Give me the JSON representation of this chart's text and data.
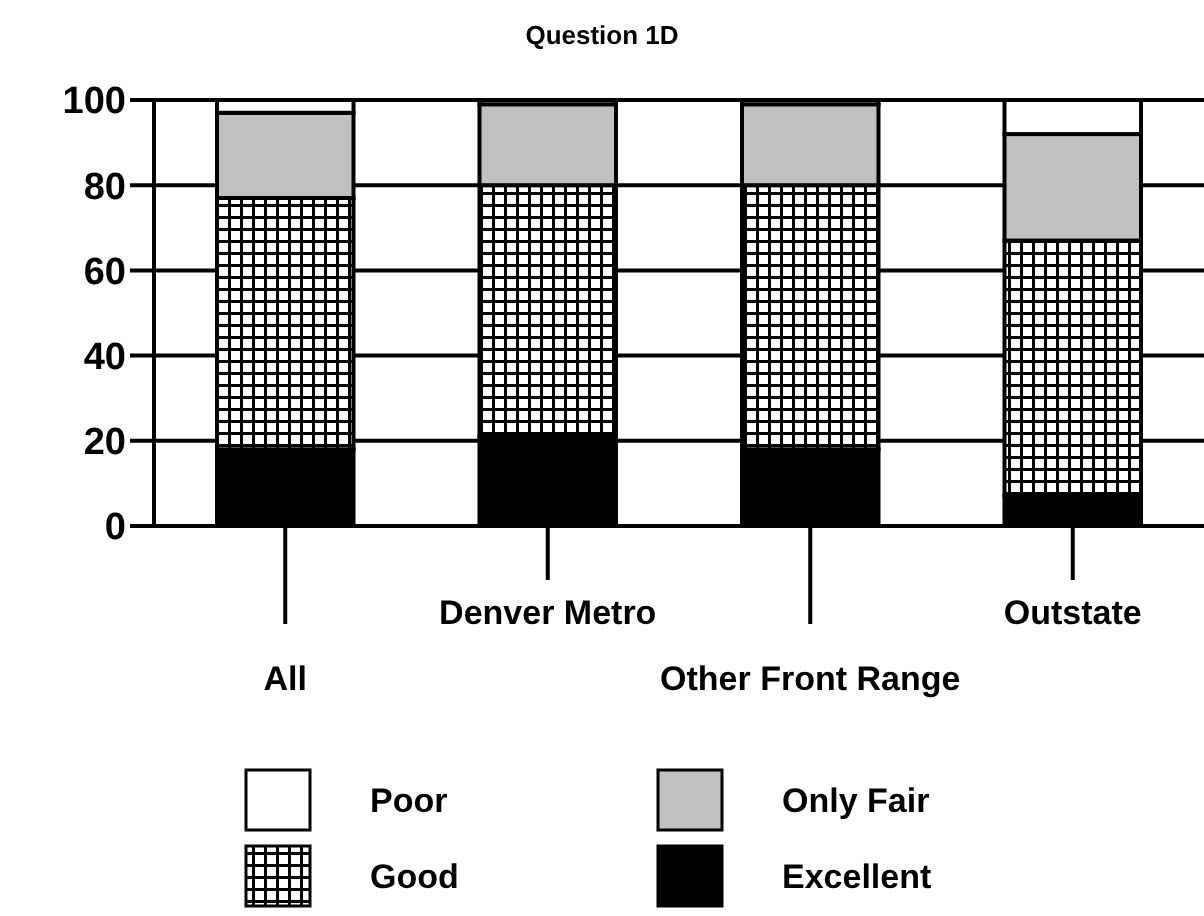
{
  "chart_data": {
    "type": "bar",
    "title": "Question 1D",
    "categories": [
      "All",
      "Denver Metro",
      "Other Front Range",
      "Outstate"
    ],
    "stacked": true,
    "series": [
      {
        "name": "Excellent",
        "color": "#000000",
        "values": [
          18,
          21,
          18,
          7
        ]
      },
      {
        "name": "Good",
        "color": "#000000",
        "values": [
          59,
          59,
          62,
          60
        ]
      },
      {
        "name": "Only Fair",
        "color": "#c0c0c0",
        "values": [
          20,
          19,
          19,
          25
        ]
      },
      {
        "name": "Poor",
        "color": "#ffffff",
        "values": [
          3,
          1,
          1,
          8
        ]
      }
    ],
    "ylim": [
      0,
      100
    ],
    "yticks": [
      0,
      20,
      40,
      60,
      80,
      100
    ],
    "grid": "y",
    "legend": "bottom"
  }
}
